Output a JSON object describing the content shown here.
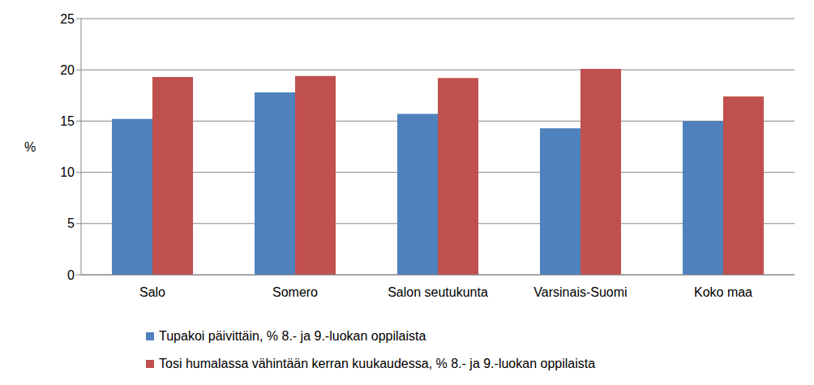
{
  "chart_data": {
    "type": "bar",
    "categories": [
      "Salo",
      "Somero",
      "Salon seutukunta",
      "Varsinais-Suomi",
      "Koko maa"
    ],
    "series": [
      {
        "name": "Tupakoi päivittäin, % 8.- ja 9.-luokan oppilaista",
        "color": "#4f81bd",
        "values": [
          15.2,
          17.8,
          15.7,
          14.3,
          15.0
        ]
      },
      {
        "name": "Tosi humalassa vähintään kerran kuukaudessa, % 8.- ja 9.-luokan oppilaista",
        "color": "#c0504d",
        "values": [
          19.3,
          19.4,
          19.2,
          20.1,
          17.4
        ]
      }
    ],
    "y_label": "%",
    "ylim": [
      0,
      25
    ],
    "yticks": [
      0,
      5,
      10,
      15,
      20,
      25
    ],
    "grid": true,
    "legend": "bottom"
  }
}
